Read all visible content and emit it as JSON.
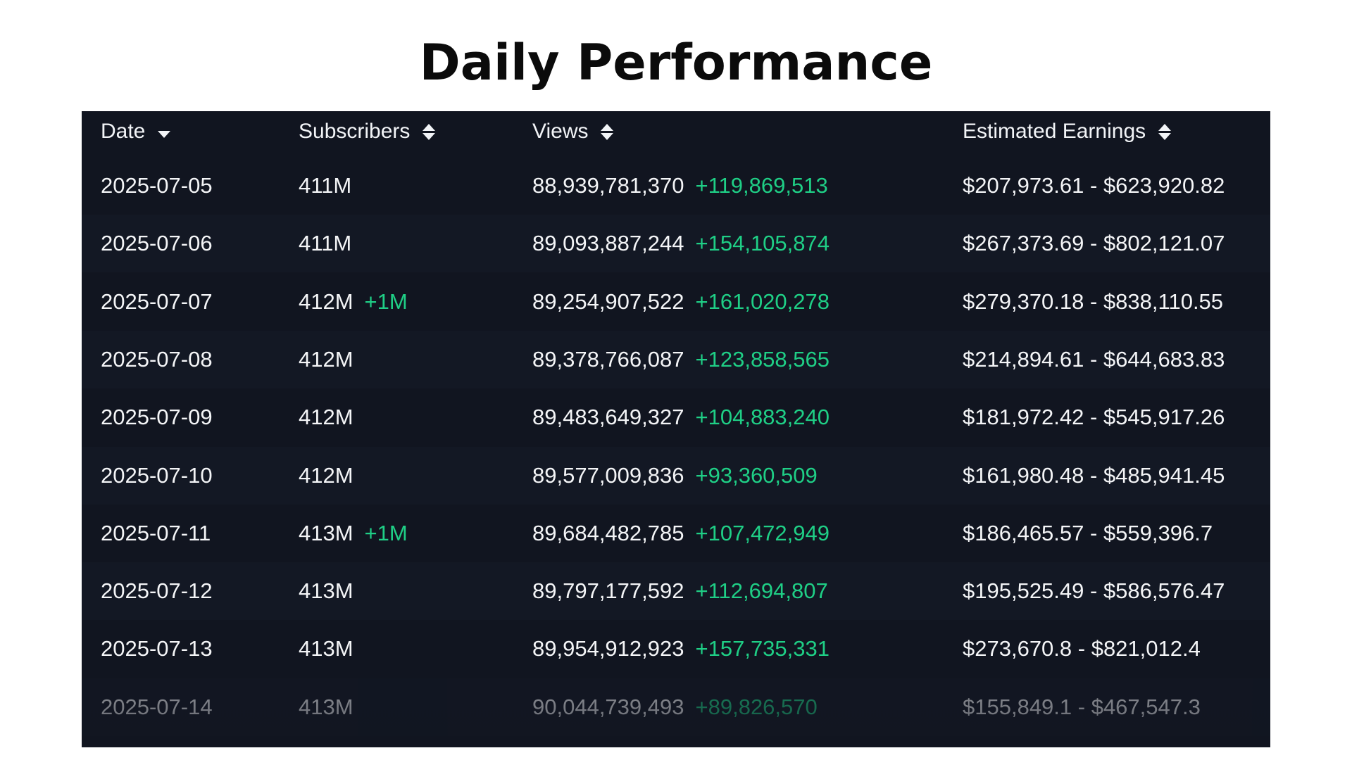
{
  "title": "Daily Performance",
  "colors": {
    "background": "#111520",
    "positive": "#1fcf86",
    "text": "#f4f5f7"
  },
  "headers": {
    "date": "Date",
    "subscribers": "Subscribers",
    "views": "Views",
    "earnings": "Estimated Earnings",
    "date_sort_icon": "caret-down-icon",
    "other_sort_icon": "sort-updown-icon"
  },
  "rows": [
    {
      "date": "2025-07-05",
      "subs": "411M",
      "subs_delta": "",
      "views": "88,939,781,370",
      "views_delta": "+119,869,513",
      "earnings": "$207,973.61 - $623,920.82"
    },
    {
      "date": "2025-07-06",
      "subs": "411M",
      "subs_delta": "",
      "views": "89,093,887,244",
      "views_delta": "+154,105,874",
      "earnings": "$267,373.69 - $802,121.07"
    },
    {
      "date": "2025-07-07",
      "subs": "412M",
      "subs_delta": "+1M",
      "views": "89,254,907,522",
      "views_delta": "+161,020,278",
      "earnings": "$279,370.18 - $838,110.55"
    },
    {
      "date": "2025-07-08",
      "subs": "412M",
      "subs_delta": "",
      "views": "89,378,766,087",
      "views_delta": "+123,858,565",
      "earnings": "$214,894.61 - $644,683.83"
    },
    {
      "date": "2025-07-09",
      "subs": "412M",
      "subs_delta": "",
      "views": "89,483,649,327",
      "views_delta": "+104,883,240",
      "earnings": "$181,972.42 - $545,917.26"
    },
    {
      "date": "2025-07-10",
      "subs": "412M",
      "subs_delta": "",
      "views": "89,577,009,836",
      "views_delta": "+93,360,509",
      "earnings": "$161,980.48 - $485,941.45"
    },
    {
      "date": "2025-07-11",
      "subs": "413M",
      "subs_delta": "+1M",
      "views": "89,684,482,785",
      "views_delta": "+107,472,949",
      "earnings": "$186,465.57 - $559,396.7"
    },
    {
      "date": "2025-07-12",
      "subs": "413M",
      "subs_delta": "",
      "views": "89,797,177,592",
      "views_delta": "+112,694,807",
      "earnings": "$195,525.49 - $586,576.47"
    },
    {
      "date": "2025-07-13",
      "subs": "413M",
      "subs_delta": "",
      "views": "89,954,912,923",
      "views_delta": "+157,735,331",
      "earnings": "$273,670.8 - $821,012.4"
    },
    {
      "date": "2025-07-14",
      "subs": "413M",
      "subs_delta": "",
      "views": "90,044,739,493",
      "views_delta": "+89,826,570",
      "earnings": "$155,849.1 - $467,547.3"
    }
  ]
}
